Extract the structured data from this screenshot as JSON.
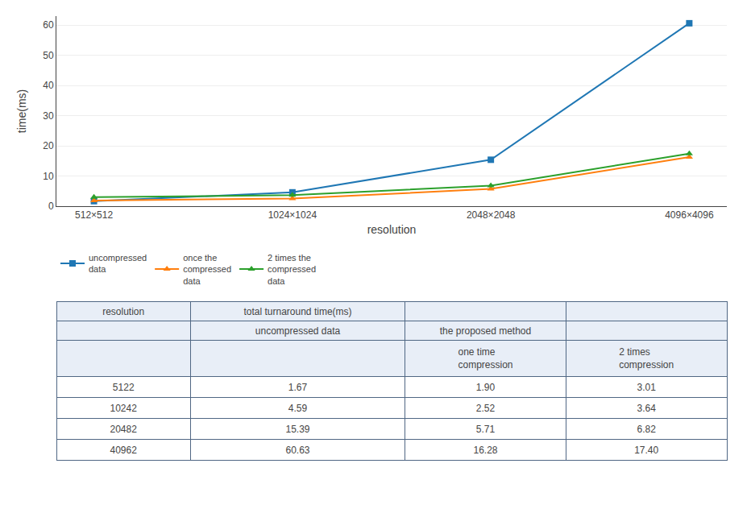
{
  "chart_data": [
    {
      "type": "line",
      "xlabel": "resolution",
      "ylabel": "time(ms)",
      "categories": [
        "512×512",
        "1024×1024",
        "2048×2048",
        "4096×4096"
      ],
      "series": [
        {
          "name": "uncompressed\ndata",
          "values": [
            1.67,
            4.59,
            15.39,
            60.63
          ],
          "marker": "square",
          "line_style": "solid"
        },
        {
          "name": "once the\ncompressed\ndata",
          "values": [
            1.9,
            2.52,
            5.71,
            16.28
          ],
          "marker": "triangle-up",
          "line_style": "solid"
        },
        {
          "name": "2 times the\ncompressed\ndata",
          "values": [
            3.01,
            3.64,
            6.82,
            17.4
          ],
          "marker": "triangle-up",
          "line_style": "solid"
        }
      ],
      "ylim": [
        0,
        63
      ],
      "yticks": [
        0,
        10,
        20,
        30,
        40,
        50,
        60
      ],
      "grid": true,
      "legend": "bottom"
    },
    {
      "type": "table",
      "header": [
        {
          "text": "resolution",
          "row": 0,
          "col": 0
        },
        {
          "text": "total turnaround time(ms)",
          "row": 0,
          "col": 1
        },
        {
          "text": "uncompressed data",
          "row": 1,
          "col": 1
        },
        {
          "text": "the proposed method",
          "row": 1,
          "col": 2
        },
        {
          "text": "one time\ncompression",
          "row": 2,
          "col": 2
        },
        {
          "text": "2 times\ncompression",
          "row": 2,
          "col": 3
        }
      ],
      "rows": [
        [
          "5122",
          "1.67",
          "1.90",
          "3.01"
        ],
        [
          "10242",
          "4.59",
          "2.52",
          "3.64"
        ],
        [
          "20482",
          "15.39",
          "5.71",
          "6.82"
        ],
        [
          "40962",
          "60.63",
          "16.28",
          "17.40"
        ]
      ]
    }
  ]
}
